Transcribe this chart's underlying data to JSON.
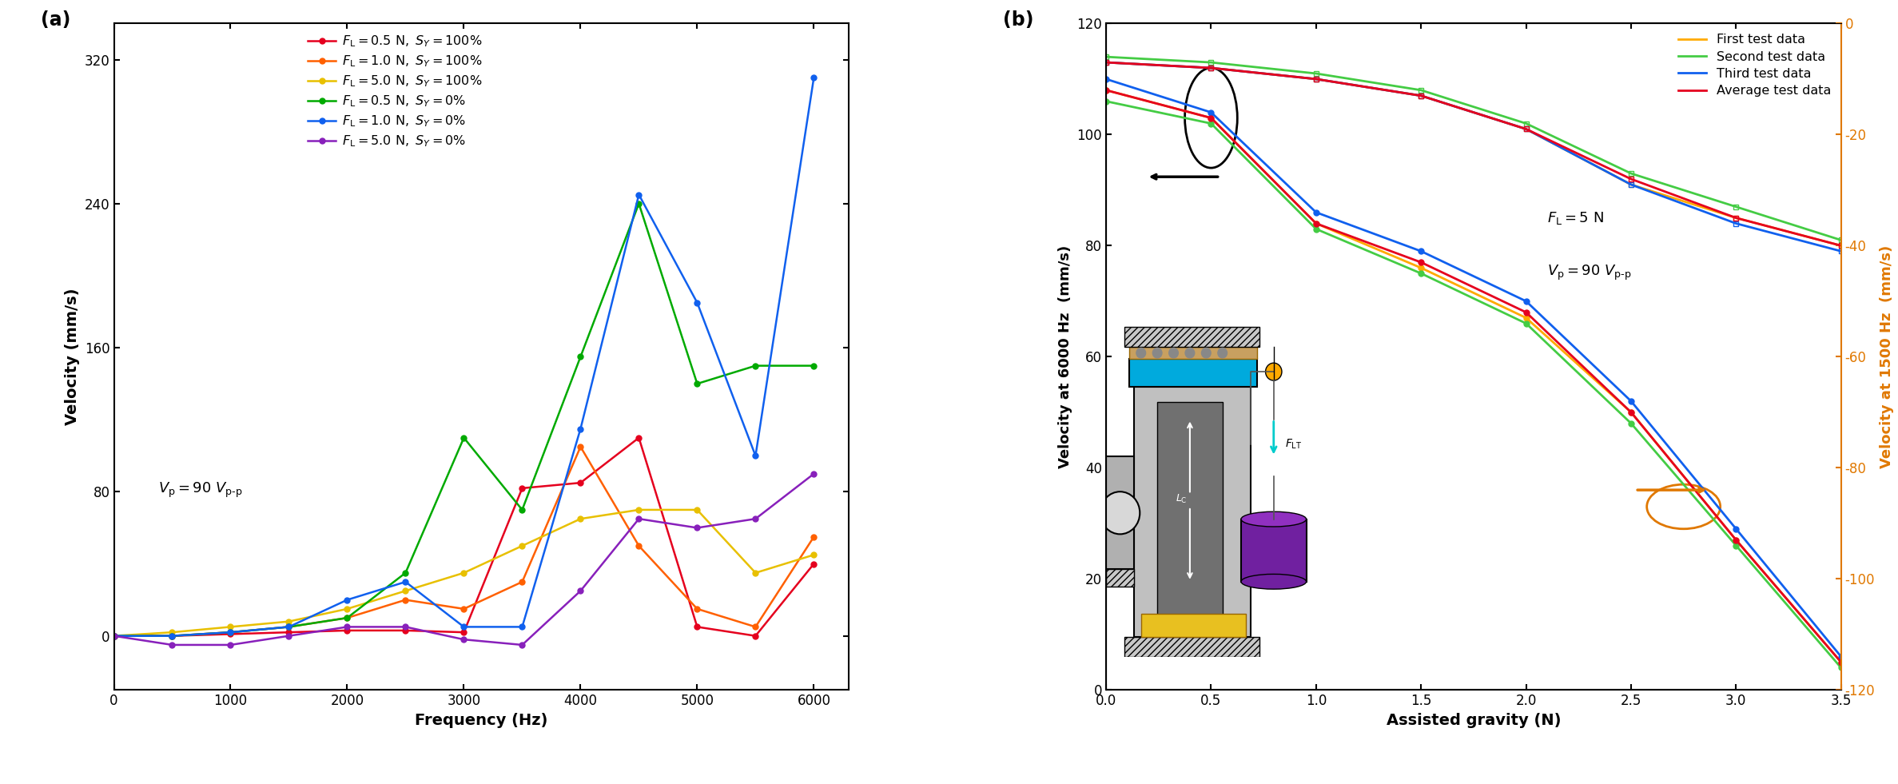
{
  "panel_a": {
    "freq": [
      0,
      500,
      1000,
      1500,
      2000,
      2500,
      3000,
      3500,
      4000,
      4500,
      5000,
      5500,
      6000
    ],
    "series": [
      {
        "label": "$F_\\mathrm{L} = 0.5\\ \\mathrm{N},\\ S_Y = 100\\%$",
        "color": "#e5001e",
        "values": [
          0,
          0,
          1,
          2,
          3,
          3,
          2,
          82,
          85,
          110,
          5,
          0,
          40
        ]
      },
      {
        "label": "$F_\\mathrm{L} = 1.0\\ \\mathrm{N},\\ S_Y = 100\\%$",
        "color": "#ff6000",
        "values": [
          0,
          0,
          2,
          5,
          10,
          20,
          15,
          30,
          105,
          50,
          15,
          5,
          55
        ]
      },
      {
        "label": "$F_\\mathrm{L} = 5.0\\ \\mathrm{N},\\ S_Y = 100\\%$",
        "color": "#e8c000",
        "values": [
          0,
          2,
          5,
          8,
          15,
          25,
          35,
          50,
          65,
          70,
          70,
          35,
          45
        ]
      },
      {
        "label": "$F_\\mathrm{L} = 0.5\\ \\mathrm{N},\\ S_Y = 0\\%$",
        "color": "#00aa00",
        "values": [
          0,
          0,
          2,
          5,
          10,
          35,
          110,
          70,
          155,
          240,
          140,
          150,
          150
        ]
      },
      {
        "label": "$F_\\mathrm{L} = 1.0\\ \\mathrm{N},\\ S_Y = 0\\%$",
        "color": "#1060ee",
        "values": [
          0,
          0,
          2,
          5,
          20,
          30,
          5,
          5,
          115,
          245,
          185,
          100,
          310
        ]
      },
      {
        "label": "$F_\\mathrm{L} = 5.0\\ \\mathrm{N},\\ S_Y = 0\\%$",
        "color": "#8820bb",
        "values": [
          0,
          -5,
          -5,
          0,
          5,
          5,
          -2,
          -5,
          25,
          65,
          60,
          65,
          90
        ]
      }
    ],
    "xlabel": "Frequency (Hz)",
    "ylabel": "Velocity (mm/s)",
    "annotation": "$V_\\mathrm{p} = 90\\ V_\\mathrm{p\\text{-}p}$",
    "ylim": [
      -30,
      340
    ],
    "xlim": [
      0,
      6300
    ],
    "xticks": [
      0,
      1000,
      2000,
      3000,
      4000,
      5000,
      6000
    ],
    "yticks": [
      0,
      80,
      160,
      240,
      320
    ]
  },
  "panel_b": {
    "gravity": [
      0.0,
      0.5,
      1.0,
      1.5,
      2.0,
      2.5,
      3.0,
      3.5
    ],
    "series_6000": [
      {
        "label": "First test data",
        "color": "#ffaa00",
        "values": [
          108,
          103,
          84,
          76,
          67,
          50,
          27,
          5
        ]
      },
      {
        "label": "Second test data",
        "color": "#44cc44",
        "values": [
          106,
          102,
          83,
          75,
          66,
          48,
          26,
          4
        ]
      },
      {
        "label": "Third test data",
        "color": "#1060ee",
        "values": [
          110,
          104,
          86,
          79,
          70,
          52,
          29,
          6
        ]
      },
      {
        "label": "Average test data",
        "color": "#e5001e",
        "values": [
          108,
          103,
          84,
          77,
          68,
          50,
          27,
          5
        ]
      }
    ],
    "series_1500": [
      {
        "label": "First test data",
        "color": "#ffaa00",
        "values": [
          7,
          8,
          10,
          13,
          19,
          29,
          35,
          40
        ]
      },
      {
        "label": "Second test data",
        "color": "#44cc44",
        "values": [
          6,
          7,
          9,
          12,
          18,
          27,
          33,
          39
        ]
      },
      {
        "label": "Third test data",
        "color": "#1060ee",
        "values": [
          7,
          8,
          10,
          13,
          19,
          29,
          36,
          41
        ]
      },
      {
        "label": "Average test data",
        "color": "#e5001e",
        "values": [
          7,
          8,
          10,
          13,
          19,
          28,
          35,
          40
        ]
      }
    ],
    "xlabel": "Assisted gravity (N)",
    "ylabel_left": "Velocity at 6000 Hz  (mm/s)",
    "ylabel_right": "Velocity at 1500 Hz  (mm/s)",
    "annotation_line1": "$F_\\mathrm{L} = 5\\ \\mathrm{N}$",
    "annotation_line2": "$V_\\mathrm{p} = 90\\ V_\\mathrm{p\\text{-}p}$",
    "ylim_left": [
      0,
      120
    ],
    "ylim_right": [
      -120,
      0
    ],
    "xlim": [
      0.0,
      3.5
    ],
    "xticks": [
      0.0,
      0.5,
      1.0,
      1.5,
      2.0,
      2.5,
      3.0,
      3.5
    ],
    "yticks_left": [
      0,
      20,
      40,
      60,
      80,
      100,
      120
    ],
    "yticks_right": [
      0,
      -20,
      -40,
      -60,
      -80,
      -100,
      -120
    ],
    "right_axis_color": "#e07800"
  }
}
